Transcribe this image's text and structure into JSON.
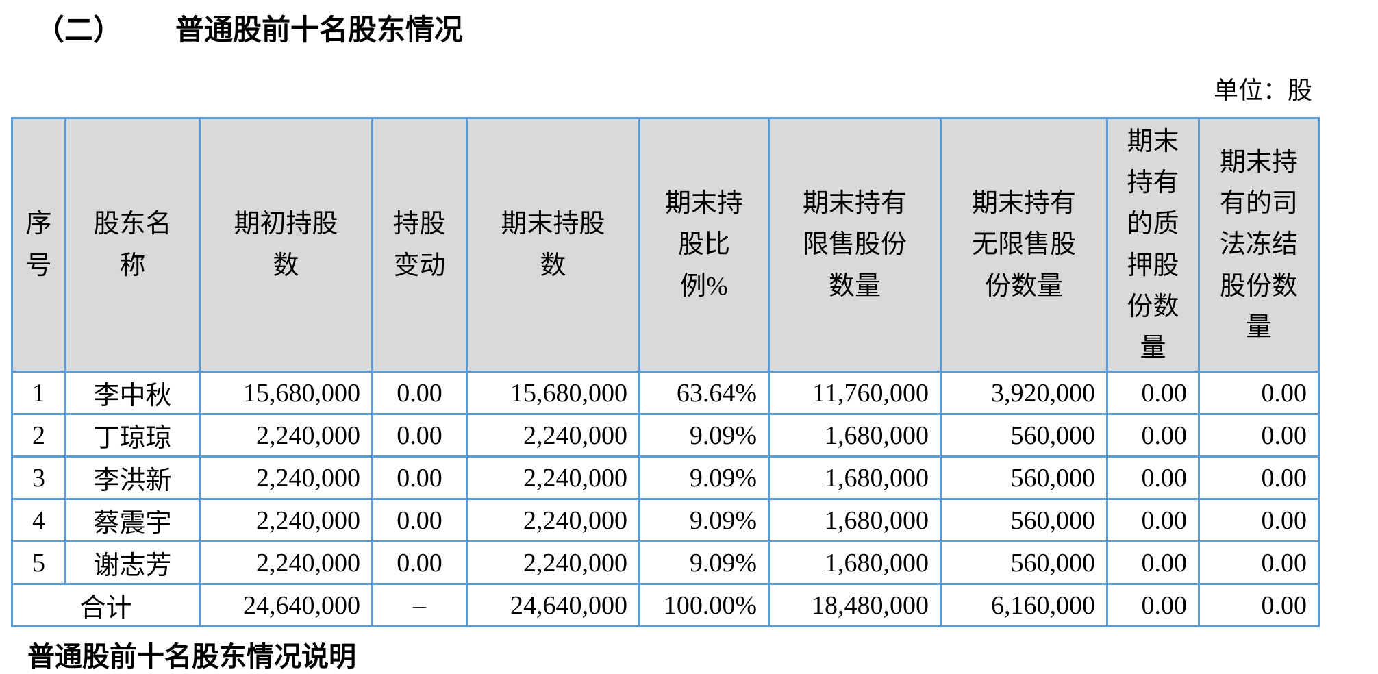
{
  "page": {
    "section_number": "（二）",
    "section_title": "普通股前十名股东情况",
    "unit_label": "单位：股",
    "footer_note": "普通股前十名股东情况说明"
  },
  "colors": {
    "table_border": "#5b9bd5",
    "header_bg": "#d9d9d9"
  },
  "table": {
    "headers": [
      "序\n号",
      "股东名\n称",
      "期初持股\n数",
      "持股\n变动",
      "期末持股\n数",
      "期末持\n股比\n例%",
      "期末持有\n限售股份\n数量",
      "期末持有\n无限售股\n份数量",
      "期末\n持有\n的质\n押股\n份数\n量",
      "期末持\n有的司\n法冻结\n股份数\n量"
    ],
    "rows": [
      {
        "no": "1",
        "name": "李中秋",
        "begin": "15,680,000",
        "change": "0.00",
        "end": "15,680,000",
        "pct": "63.64%",
        "restricted": "11,760,000",
        "unrestricted": "3,920,000",
        "pledged": "0.00",
        "frozen": "0.00"
      },
      {
        "no": "2",
        "name": "丁琼琼",
        "begin": "2,240,000",
        "change": "0.00",
        "end": "2,240,000",
        "pct": "9.09%",
        "restricted": "1,680,000",
        "unrestricted": "560,000",
        "pledged": "0.00",
        "frozen": "0.00"
      },
      {
        "no": "3",
        "name": "李洪新",
        "begin": "2,240,000",
        "change": "0.00",
        "end": "2,240,000",
        "pct": "9.09%",
        "restricted": "1,680,000",
        "unrestricted": "560,000",
        "pledged": "0.00",
        "frozen": "0.00"
      },
      {
        "no": "4",
        "name": "蔡震宇",
        "begin": "2,240,000",
        "change": "0.00",
        "end": "2,240,000",
        "pct": "9.09%",
        "restricted": "1,680,000",
        "unrestricted": "560,000",
        "pledged": "0.00",
        "frozen": "0.00"
      },
      {
        "no": "5",
        "name": "谢志芳",
        "begin": "2,240,000",
        "change": "0.00",
        "end": "2,240,000",
        "pct": "9.09%",
        "restricted": "1,680,000",
        "unrestricted": "560,000",
        "pledged": "0.00",
        "frozen": "0.00"
      }
    ],
    "total_row": {
      "label": "合计",
      "begin": "24,640,000",
      "change": "–",
      "end": "24,640,000",
      "pct": "100.00%",
      "restricted": "18,480,000",
      "unrestricted": "6,160,000",
      "pledged": "0.00",
      "frozen": "0.00"
    }
  }
}
